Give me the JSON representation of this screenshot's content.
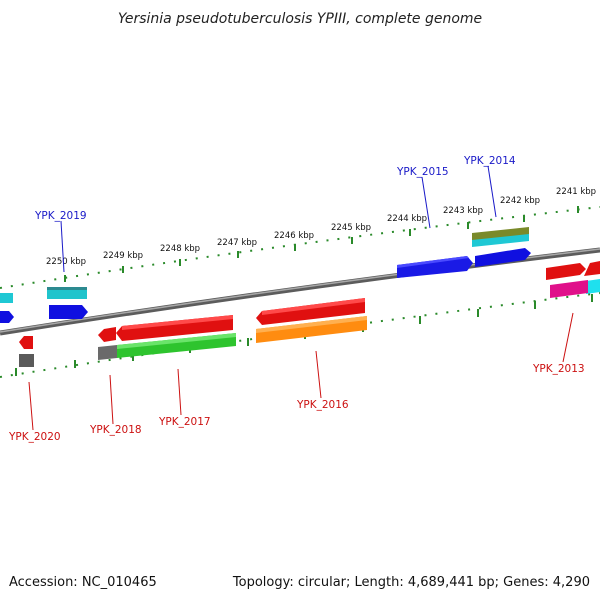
{
  "title": "Yersinia pseudotuberculosis YPIII, complete genome",
  "footer": {
    "accession": "Accession: NC_010465",
    "topology": "Topology: circular; Length: 4,689,441 bp; Genes: 4,290"
  },
  "colors": {
    "backbone": "#8a8a8a",
    "ticks": "#2a8a2a",
    "label_forward": "#1a1ac8",
    "label_reverse": "#cc1111"
  },
  "ticks": [
    {
      "label": "2250 kbp"
    },
    {
      "label": "2249 kbp"
    },
    {
      "label": "2248 kbp"
    },
    {
      "label": "2247 kbp"
    },
    {
      "label": "2246 kbp"
    },
    {
      "label": "2245 kbp"
    },
    {
      "label": "2244 kbp"
    },
    {
      "label": "2243 kbp"
    },
    {
      "label": "2242 kbp"
    },
    {
      "label": "2241 kbp"
    }
  ],
  "gene_labels": [
    {
      "name": "YPK_2019",
      "strand": "forward"
    },
    {
      "name": "YPK_2015",
      "strand": "forward"
    },
    {
      "name": "YPK_2014",
      "strand": "forward"
    },
    {
      "name": "YPK_2020",
      "strand": "reverse"
    },
    {
      "name": "YPK_2018",
      "strand": "reverse"
    },
    {
      "name": "YPK_2017",
      "strand": "reverse"
    },
    {
      "name": "YPK_2016",
      "strand": "reverse"
    },
    {
      "name": "YPK_2013",
      "strand": "reverse"
    }
  ]
}
